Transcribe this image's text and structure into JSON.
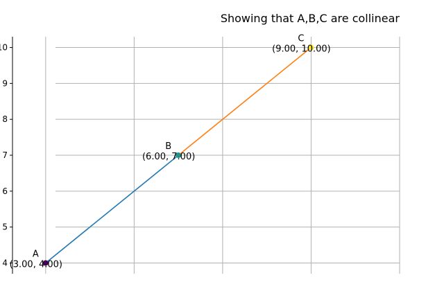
{
  "chart_data": {
    "type": "line",
    "title": "Showing that A,B,C are collinear",
    "xlabel": "",
    "ylabel": "",
    "xlim": [
      2.25,
      11.0
    ],
    "ylim": [
      3.7,
      10.3
    ],
    "grid": true,
    "y_tick_values": [
      4,
      5,
      6,
      7,
      8,
      9,
      10
    ],
    "y_tick_labels": [
      "4",
      "5",
      "6",
      "7",
      "8",
      "9",
      "10"
    ],
    "x_tick_values": [
      3,
      5,
      7,
      9,
      11
    ],
    "points": [
      {
        "name": "A",
        "x": 3.0,
        "y": 4.0,
        "label": "(3.00, 4.00)",
        "color": "#440154"
      },
      {
        "name": "B",
        "x": 6.0,
        "y": 7.0,
        "label": "(6.00, 7.00)",
        "color": "#21918c"
      },
      {
        "name": "C",
        "x": 9.0,
        "y": 10.0,
        "label": "(9.00, 10.00)",
        "color": "#fde725"
      }
    ],
    "segments": [
      {
        "from": "A",
        "to": "B",
        "color": "#1f77b4"
      },
      {
        "from": "B",
        "to": "C",
        "color": "#ff7f0e"
      }
    ]
  }
}
